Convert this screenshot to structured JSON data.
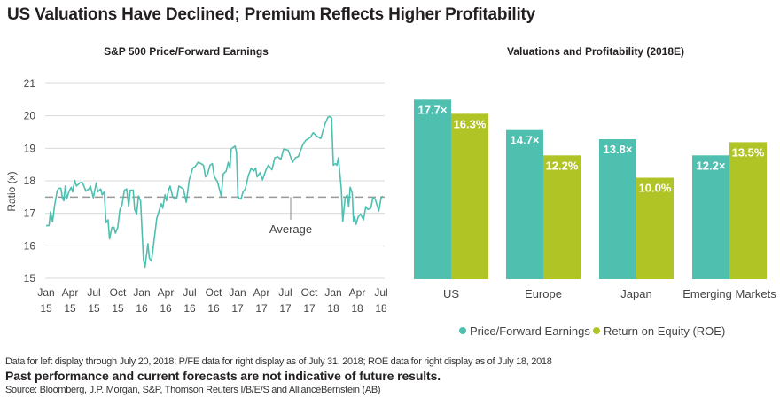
{
  "title": "US Valuations Have Declined; Premium Reflects Higher Profitability",
  "notes": {
    "data_note": "Data for left display through July 20, 2018; P/FE data for right display as of July 31, 2018; ROE data for right display as of July 18, 2018",
    "disclaimer": "Past performance and current forecasts are not indicative of future results.",
    "source": "Source: Bloomberg,  J.P. Morgan, S&P, Thomson Reuters I/B/E/S and AllianceBernstein (AB)"
  },
  "chart_data": [
    {
      "type": "line",
      "title": "S&P 500 Price/Forward Earnings",
      "ylabel": "Ratio (x)",
      "xlabel": "",
      "x_unit": "months since Jan 2015",
      "ylim": [
        15,
        21
      ],
      "yticks": [
        "15",
        "16",
        "17",
        "18",
        "19",
        "20",
        "21"
      ],
      "xticks": [
        [
          "Jan",
          "15"
        ],
        [
          "Apr",
          "15"
        ],
        [
          "Jul",
          "15"
        ],
        [
          "Oct",
          "15"
        ],
        [
          "Jan",
          "16"
        ],
        [
          "Apr",
          "16"
        ],
        [
          "Jul",
          "16"
        ],
        [
          "Oct",
          "16"
        ],
        [
          "Jan",
          "17"
        ],
        [
          "Apr",
          "17"
        ],
        [
          "Jul",
          "17"
        ],
        [
          "Oct",
          "17"
        ],
        [
          "Jan",
          "18"
        ],
        [
          "Apr",
          "18"
        ],
        [
          "Jul",
          "18"
        ]
      ],
      "average": {
        "value": 17.5,
        "label": "Average"
      },
      "color": "#4fbfb0",
      "points": [
        [
          0,
          16.62
        ],
        [
          0.37,
          16.62
        ],
        [
          0.56,
          17.05
        ],
        [
          0.81,
          16.74
        ],
        [
          1.04,
          17.21
        ],
        [
          1.37,
          17.66
        ],
        [
          1.55,
          17.77
        ],
        [
          1.85,
          17.77
        ],
        [
          2.04,
          17.48
        ],
        [
          2.22,
          17.39
        ],
        [
          2.41,
          17.84
        ],
        [
          2.59,
          17.44
        ],
        [
          2.85,
          17.66
        ],
        [
          3.15,
          17.8
        ],
        [
          3.33,
          17.66
        ],
        [
          3.59,
          18.01
        ],
        [
          3.81,
          17.84
        ],
        [
          4.26,
          17.94
        ],
        [
          4.55,
          17.95
        ],
        [
          5.0,
          17.68
        ],
        [
          5.37,
          17.75
        ],
        [
          5.55,
          17.84
        ],
        [
          5.92,
          17.48
        ],
        [
          6.29,
          17.94
        ],
        [
          6.48,
          17.66
        ],
        [
          6.85,
          17.75
        ],
        [
          7.03,
          17.57
        ],
        [
          7.29,
          17.66
        ],
        [
          7.51,
          16.71
        ],
        [
          7.77,
          16.8
        ],
        [
          7.96,
          16.21
        ],
        [
          8.25,
          16.57
        ],
        [
          8.51,
          16.57
        ],
        [
          8.7,
          16.39
        ],
        [
          8.99,
          16.57
        ],
        [
          9.25,
          17.12
        ],
        [
          9.51,
          17.25
        ],
        [
          9.81,
          17.71
        ],
        [
          10.1,
          17.75
        ],
        [
          10.36,
          17.21
        ],
        [
          10.55,
          17.71
        ],
        [
          10.92,
          17.71
        ],
        [
          11.1,
          17.12
        ],
        [
          11.36,
          16.98
        ],
        [
          11.58,
          17.53
        ],
        [
          11.84,
          17.39
        ],
        [
          12.21,
          15.57
        ],
        [
          12.4,
          15.34
        ],
        [
          12.77,
          16.07
        ],
        [
          12.95,
          15.62
        ],
        [
          13.21,
          15.53
        ],
        [
          13.51,
          16.12
        ],
        [
          13.88,
          16.84
        ],
        [
          14.43,
          17.3
        ],
        [
          14.62,
          17.16
        ],
        [
          14.91,
          17.57
        ],
        [
          15.1,
          17.39
        ],
        [
          15.36,
          17.71
        ],
        [
          15.54,
          17.84
        ],
        [
          15.84,
          17.53
        ],
        [
          16.1,
          17.44
        ],
        [
          16.4,
          17.48
        ],
        [
          16.65,
          17.84
        ],
        [
          17.21,
          17.75
        ],
        [
          17.58,
          17.34
        ],
        [
          17.95,
          18.03
        ],
        [
          18.39,
          18.39
        ],
        [
          18.69,
          18.44
        ],
        [
          19.06,
          18.57
        ],
        [
          19.43,
          18.53
        ],
        [
          19.73,
          18.48
        ],
        [
          19.99,
          18.12
        ],
        [
          20.24,
          18.21
        ],
        [
          20.54,
          18.48
        ],
        [
          20.84,
          18.53
        ],
        [
          21.1,
          18.12
        ],
        [
          21.47,
          17.98
        ],
        [
          21.95,
          17.53
        ],
        [
          22.21,
          18.21
        ],
        [
          22.58,
          18.3
        ],
        [
          22.84,
          18.57
        ],
        [
          23.06,
          18.39
        ],
        [
          23.2,
          18.98
        ],
        [
          23.69,
          19.07
        ],
        [
          23.87,
          18.89
        ],
        [
          24.06,
          17.48
        ],
        [
          24.43,
          17.44
        ],
        [
          24.69,
          17.66
        ],
        [
          24.98,
          17.75
        ],
        [
          25.35,
          18.16
        ],
        [
          25.72,
          18.39
        ],
        [
          26.02,
          18.3
        ],
        [
          26.28,
          18.39
        ],
        [
          26.46,
          18.12
        ],
        [
          26.83,
          18.25
        ],
        [
          27.13,
          18.03
        ],
        [
          27.57,
          18.34
        ],
        [
          27.87,
          18.48
        ],
        [
          28.31,
          18.34
        ],
        [
          28.68,
          18.71
        ],
        [
          29.05,
          18.74
        ],
        [
          29.42,
          18.66
        ],
        [
          29.79,
          18.98
        ],
        [
          30.35,
          18.94
        ],
        [
          30.9,
          18.57
        ],
        [
          31.27,
          18.71
        ],
        [
          31.64,
          18.75
        ],
        [
          31.83,
          18.89
        ],
        [
          32.2,
          19.12
        ],
        [
          32.57,
          19.25
        ],
        [
          33.12,
          19.34
        ],
        [
          33.49,
          19.48
        ],
        [
          33.86,
          19.39
        ],
        [
          34.42,
          19.3
        ],
        [
          34.6,
          19.44
        ],
        [
          34.97,
          19.75
        ],
        [
          35.34,
          19.96
        ],
        [
          35.53,
          19.98
        ],
        [
          35.79,
          19.94
        ],
        [
          36.01,
          18.48
        ],
        [
          36.27,
          18.53
        ],
        [
          36.45,
          18.48
        ],
        [
          36.64,
          18.71
        ],
        [
          37.01,
          17.75
        ],
        [
          37.19,
          16.75
        ],
        [
          37.49,
          17.48
        ],
        [
          37.75,
          17.57
        ],
        [
          37.93,
          17.21
        ],
        [
          38.12,
          17.8
        ],
        [
          38.38,
          17.62
        ],
        [
          38.53,
          16.75
        ],
        [
          38.68,
          16.89
        ],
        [
          38.86,
          16.66
        ],
        [
          39.12,
          16.89
        ],
        [
          39.42,
          16.98
        ],
        [
          39.79,
          16.8
        ],
        [
          40.08,
          17.21
        ],
        [
          40.34,
          17.12
        ],
        [
          40.71,
          17.16
        ],
        [
          40.97,
          17.48
        ],
        [
          41.26,
          17.44
        ],
        [
          41.71,
          17.07
        ],
        [
          42.0,
          17.48
        ],
        [
          42.2,
          17.53
        ]
      ]
    },
    {
      "type": "bar",
      "title": "Valuations and Profitability (2018E)",
      "categories": [
        "US",
        "Europe",
        "Japan",
        "Emerging Markets"
      ],
      "series": [
        {
          "name": "Price/Forward Earnings",
          "color": "#4fbfb0",
          "values": [
            17.7,
            14.7,
            13.8,
            12.2
          ],
          "labels": [
            "17.7×",
            "14.7×",
            "13.8×",
            "12.2×"
          ]
        },
        {
          "name": "Return on Equity (ROE)",
          "color": "#b0c425",
          "values": [
            16.3,
            12.2,
            10.0,
            13.5
          ],
          "labels": [
            "16.3%",
            "12.2%",
            "10.0%",
            "13.5%"
          ]
        }
      ],
      "legend": "bottom"
    }
  ]
}
